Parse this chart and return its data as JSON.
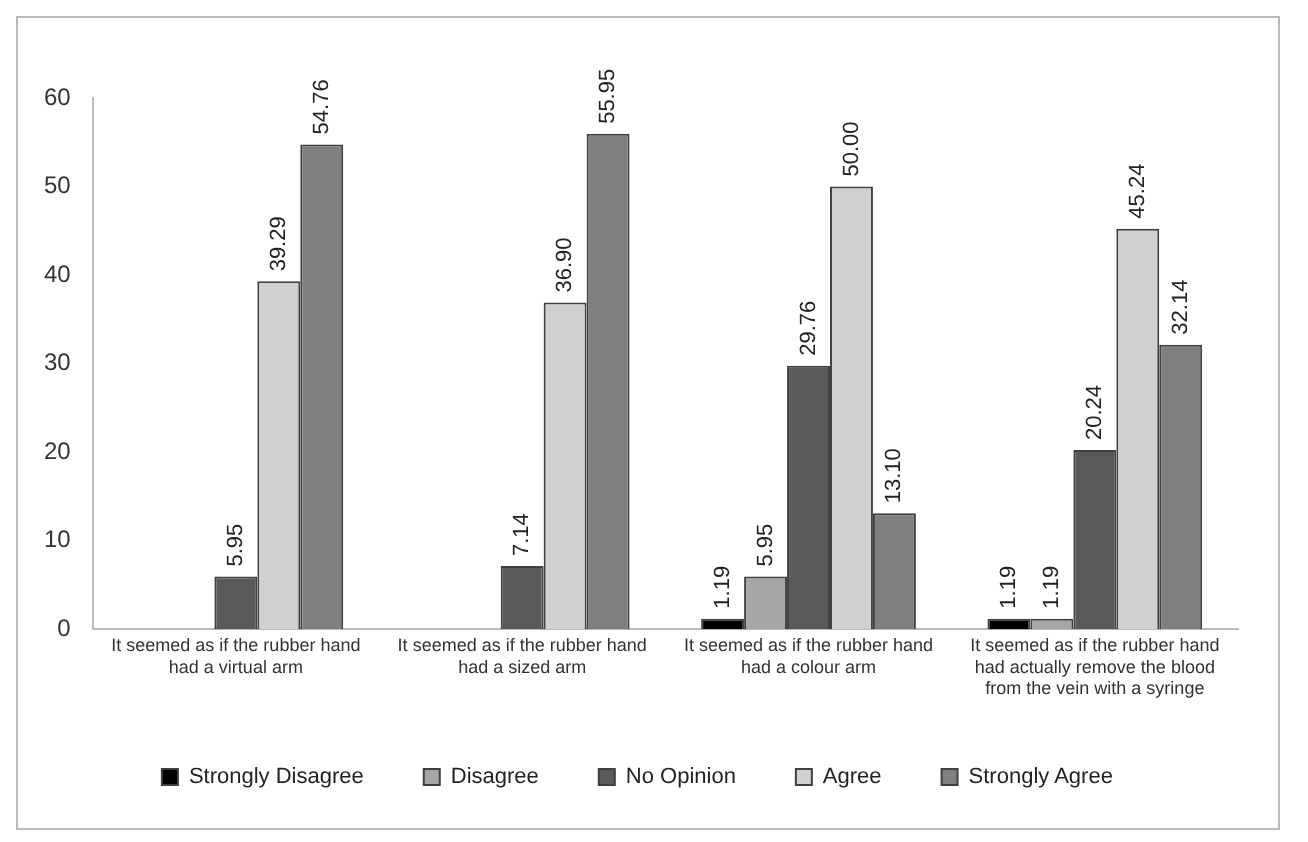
{
  "chart_data": {
    "type": "bar",
    "categories": [
      "It seemed as if the rubber hand had a virtual arm",
      "It seemed as if the rubber hand had a sized arm",
      "It seemed as if the rubber hand had a colour arm",
      "It seemed as if the rubber hand had actually remove the blood from the vein with a syringe"
    ],
    "series": [
      {
        "name": "Strongly Disagree",
        "color": "#000000",
        "values": [
          0,
          0,
          1.19,
          1.19
        ],
        "value_labels": [
          null,
          null,
          "1.19",
          "1.19"
        ]
      },
      {
        "name": "Disagree",
        "color": "#a6a6a6",
        "values": [
          0,
          0,
          5.95,
          1.19
        ],
        "value_labels": [
          null,
          null,
          "5.95",
          "1.19"
        ]
      },
      {
        "name": "No Opinion",
        "color": "#595959",
        "values": [
          5.95,
          7.14,
          29.76,
          20.24
        ],
        "value_labels": [
          "5.95",
          "7.14",
          "29.76",
          "20.24"
        ]
      },
      {
        "name": "Agree",
        "color": "#d0d0d0",
        "values": [
          39.29,
          36.9,
          50,
          45.24
        ],
        "value_labels": [
          "39.29",
          "36.90",
          "50.00",
          "45.24"
        ]
      },
      {
        "name": "Strongly Agree",
        "color": "#7f7f7f",
        "values": [
          54.76,
          55.95,
          13.1,
          32.14
        ],
        "value_labels": [
          "54.76",
          "55.95",
          "13.10",
          "32.14"
        ]
      }
    ],
    "ylim": [
      0,
      60
    ],
    "yticks": [
      0,
      10,
      20,
      30,
      40,
      50,
      60
    ],
    "grid": false,
    "legend": "bottom"
  }
}
